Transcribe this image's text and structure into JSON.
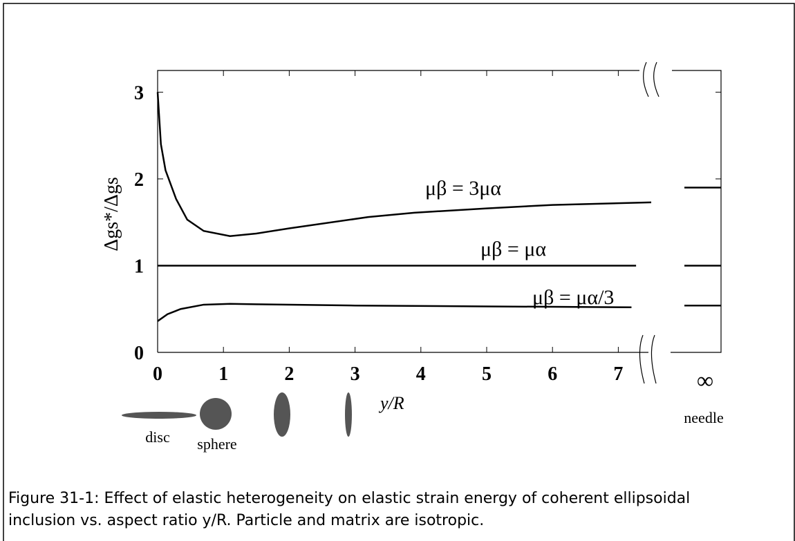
{
  "chart_data": {
    "type": "line",
    "ylabel": "Δgs*/Δgs",
    "xlabel": "y/R",
    "xlim": [
      0,
      7.5
    ],
    "ylim": [
      0,
      3.25
    ],
    "xticks": [
      0,
      1,
      2,
      3,
      4,
      5,
      6,
      7
    ],
    "yticks": [
      0,
      1,
      2,
      3
    ],
    "color": "#000000",
    "infinity_label": "∞",
    "needle_label": "needle",
    "shape_labels": [
      "disc",
      "sphere"
    ],
    "series": [
      {
        "name": "μβ = 3μα",
        "needle_value": 1.9,
        "x": [
          0,
          0.05,
          0.12,
          0.28,
          0.45,
          0.7,
          1.1,
          1.5,
          2,
          3.2,
          3.9,
          5,
          6,
          7.5
        ],
        "values": [
          3,
          2.4,
          2.1,
          1.77,
          1.53,
          1.4,
          1.34,
          1.37,
          1.43,
          1.56,
          1.61,
          1.66,
          1.7,
          1.73
        ]
      },
      {
        "name": "μβ = μα",
        "needle_value": 1,
        "x": [
          0,
          7.27
        ],
        "values": [
          1,
          1
        ]
      },
      {
        "name": "μβ = μα/3",
        "needle_value": 0.54,
        "x": [
          0,
          0.15,
          0.35,
          0.7,
          1.1,
          1.5,
          3,
          5,
          7.2
        ],
        "values": [
          0.36,
          0.44,
          0.5,
          0.55,
          0.56,
          0.555,
          0.54,
          0.53,
          0.52
        ]
      }
    ],
    "caption": [
      "Figure 31-1: Effect of elastic heterogeneity on elastic strain energy of coherent ellipsoidal",
      "inclusion vs. aspect ratio y/R. Particle and matrix are isotropic."
    ]
  }
}
